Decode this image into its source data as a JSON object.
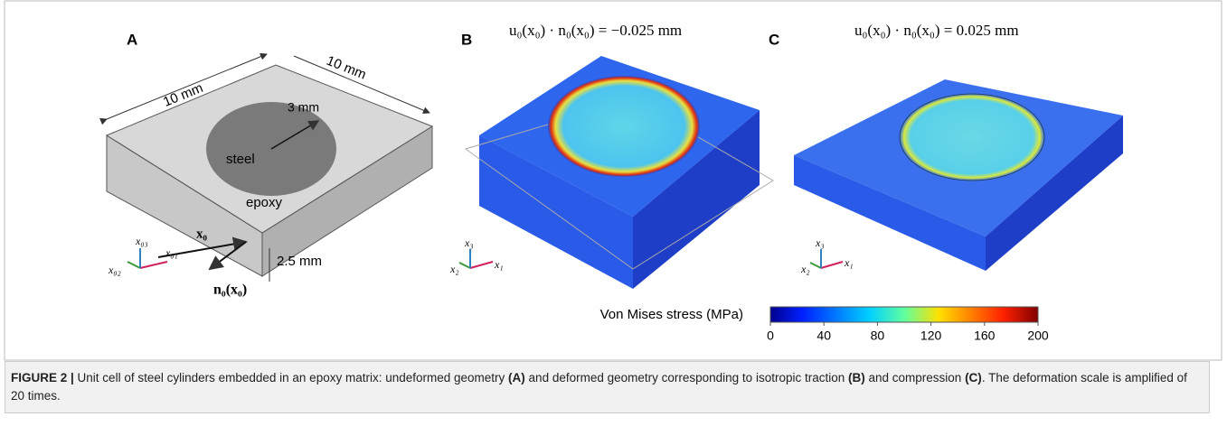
{
  "panels": [
    {
      "letter": "A",
      "labels": {
        "width": "10 mm",
        "depth": "10 mm",
        "radius": "3 mm",
        "inclusion": "steel",
        "matrix": "epoxy",
        "height": "2.5 mm",
        "point": "x₀",
        "normal": "n₀(x₀)"
      },
      "axes": [
        "x₀₁",
        "x₀₂",
        "x₀₃"
      ]
    },
    {
      "letter": "B",
      "equation": "u₀(x₀) · n₀(x₀) = −0.025 mm",
      "axes": [
        "x₁",
        "x₂",
        "x₃"
      ]
    },
    {
      "letter": "C",
      "equation": "u₀(x₀) · n₀(x₀) = 0.025 mm",
      "axes": [
        "x₁",
        "x₂",
        "x₃"
      ]
    }
  ],
  "colorbar": {
    "label": "Von Mises stress (MPa)",
    "lim": [
      0,
      200
    ],
    "ticks": [
      0,
      40,
      80,
      120,
      160,
      200
    ]
  },
  "caption": {
    "label": "FIGURE 2 |",
    "segments": [
      " Unit cell of steel cylinders embedded in an epoxy matrix: undeformed geometry ",
      "(A)",
      " and deformed geometry corresponding to isotropic traction ",
      "(B)",
      " and compression ",
      "(C)",
      ". The deformation scale is amplified of 20 times."
    ]
  }
}
